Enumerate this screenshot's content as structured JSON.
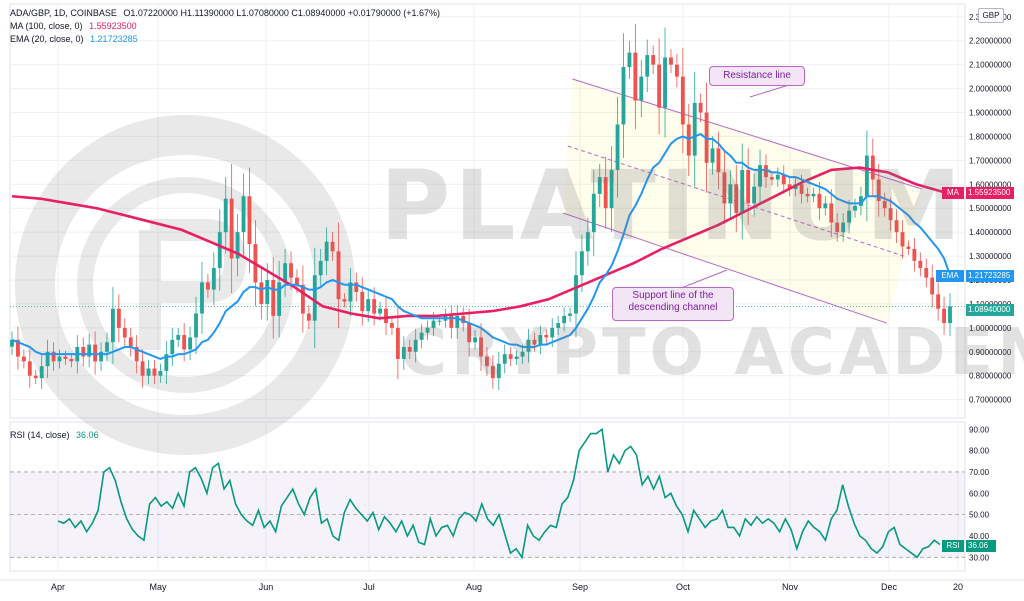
{
  "header": {
    "symbol": "ADA/GBP, 1D, COINBASE",
    "ohlc": "O1.07220000  H1.11390000  L1.07080000  C1.08940000  +0.01790000 (+1.67%)",
    "ma_label": "MA (100, close, 0)",
    "ma_value": "1.55923500",
    "ema_label": "EMA (20, close, 0)",
    "ema_value": "1.21723285",
    "currency": "GBP"
  },
  "rsi_header": {
    "label": "RSI (14, close)",
    "value": "36.06"
  },
  "annotations": {
    "resistance": "Resistance line",
    "support_line1": "Support line of the",
    "support_line2": "descending channel"
  },
  "watermark": {
    "line1": "PLATINUM",
    "line2": "CRYPTO ACADEMY"
  },
  "tags": {
    "ma": {
      "name": "MA",
      "value": "1.55923500"
    },
    "ema": {
      "name": "EMA",
      "value": "1.21723285"
    },
    "price": "1.08940000",
    "rsi": {
      "name": "RSI",
      "value": "36.06"
    }
  },
  "colors": {
    "up": "#26a69a",
    "down": "#ef5350",
    "ma": "#e91e63",
    "ema": "#2196f3",
    "rsi": "#089981",
    "channel": "#ba68c8",
    "grid": "#eef0f3"
  },
  "chart_data": [
    {
      "type": "candlestick",
      "title": "ADA/GBP, 1D, COINBASE",
      "y_ticks": [
        "2.30000000",
        "2.20000000",
        "2.10000000",
        "2.00000000",
        "1.90000000",
        "1.80000000",
        "1.70000000",
        "1.60000000",
        "1.50000000",
        "1.40000000",
        "1.30000000",
        "1.20000000",
        "1.10000000",
        "1.00000000",
        "0.90000000",
        "0.80000000",
        "0.70000000"
      ],
      "ylim": [
        0.64,
        2.32
      ],
      "x_ticks": [
        "Apr",
        "May",
        "Jun",
        "Jul",
        "Aug",
        "Sep",
        "Oct",
        "Nov",
        "Dec",
        "20"
      ],
      "close": [
        0.95,
        0.88,
        0.86,
        0.8,
        0.79,
        0.84,
        0.9,
        0.86,
        0.88,
        0.87,
        0.86,
        0.92,
        0.88,
        0.93,
        0.86,
        0.9,
        0.94,
        1.08,
        1.0,
        0.96,
        0.92,
        0.86,
        0.8,
        0.83,
        0.8,
        0.82,
        0.89,
        0.95,
        0.97,
        0.91,
        0.96,
        1.06,
        1.19,
        1.16,
        1.25,
        1.4,
        1.54,
        1.29,
        1.4,
        1.55,
        1.35,
        1.19,
        1.1,
        1.2,
        1.05,
        1.19,
        1.27,
        1.21,
        1.18,
        1.06,
        1.03,
        1.22,
        1.28,
        1.36,
        1.32,
        1.12,
        1.11,
        1.19,
        1.15,
        1.07,
        1.12,
        1.06,
        1.08,
        1.02,
        1.0,
        0.87,
        0.92,
        0.9,
        0.95,
        0.98,
        1.0,
        1.03,
        1.03,
        1.05,
        1.0,
        1.05,
        1.02,
        0.94,
        0.96,
        0.88,
        0.84,
        0.79,
        0.85,
        0.89,
        0.87,
        0.88,
        0.9,
        0.95,
        0.93,
        0.97,
        0.96,
        1.0,
        1.02,
        1.05,
        1.06,
        1.22,
        1.32,
        1.4,
        1.56,
        1.63,
        1.5,
        1.66,
        1.85,
        2.09,
        2.15,
        1.95,
        2.05,
        2.14,
        2.1,
        1.92,
        2.13,
        2.1,
        2.05,
        1.85,
        1.72,
        1.94,
        1.9,
        1.69,
        1.75,
        1.65,
        1.52,
        1.6,
        1.48,
        1.66,
        1.52,
        1.59,
        1.68,
        1.63,
        1.62,
        1.64,
        1.6,
        1.58,
        1.6,
        1.56,
        1.55,
        1.56,
        1.5,
        1.52,
        1.44,
        1.4,
        1.44,
        1.49,
        1.51,
        1.55,
        1.72,
        1.62,
        1.53,
        1.5,
        1.45,
        1.4,
        1.34,
        1.33,
        1.28,
        1.25,
        1.21,
        1.14,
        1.08,
        1.02,
        1.09
      ],
      "ma": [
        [
          0,
          1.55
        ],
        [
          10,
          1.54
        ],
        [
          20,
          1.52
        ],
        [
          30,
          1.5
        ],
        [
          40,
          1.47
        ],
        [
          50,
          1.44
        ],
        [
          60,
          1.41
        ],
        [
          70,
          1.36
        ],
        [
          80,
          1.31
        ],
        [
          90,
          1.24
        ],
        [
          100,
          1.17
        ],
        [
          110,
          1.09
        ],
        [
          120,
          1.06
        ],
        [
          130,
          1.04
        ],
        [
          140,
          1.05
        ],
        [
          150,
          1.05
        ],
        [
          160,
          1.06
        ],
        [
          170,
          1.07
        ],
        [
          180,
          1.09
        ],
        [
          190,
          1.12
        ],
        [
          200,
          1.17
        ],
        [
          210,
          1.22
        ],
        [
          220,
          1.27
        ],
        [
          230,
          1.33
        ],
        [
          240,
          1.38
        ],
        [
          250,
          1.43
        ],
        [
          260,
          1.49
        ],
        [
          270,
          1.55
        ],
        [
          280,
          1.61
        ],
        [
          290,
          1.66
        ],
        [
          300,
          1.67
        ],
        [
          310,
          1.65
        ],
        [
          320,
          1.6
        ],
        [
          332,
          1.56
        ]
      ],
      "ema": [
        0.95,
        0.94,
        0.93,
        0.92,
        0.9,
        0.89,
        0.89,
        0.89,
        0.89,
        0.89,
        0.89,
        0.89,
        0.89,
        0.89,
        0.89,
        0.89,
        0.89,
        0.9,
        0.91,
        0.92,
        0.92,
        0.91,
        0.9,
        0.89,
        0.88,
        0.87,
        0.88,
        0.88,
        0.89,
        0.89,
        0.9,
        0.91,
        0.94,
        0.95,
        0.98,
        1.02,
        1.07,
        1.09,
        1.11,
        1.15,
        1.17,
        1.17,
        1.16,
        1.17,
        1.16,
        1.16,
        1.18,
        1.18,
        1.18,
        1.17,
        1.16,
        1.16,
        1.17,
        1.19,
        1.2,
        1.19,
        1.18,
        1.18,
        1.18,
        1.17,
        1.16,
        1.15,
        1.14,
        1.13,
        1.12,
        1.09,
        1.07,
        1.06,
        1.05,
        1.04,
        1.04,
        1.04,
        1.04,
        1.04,
        1.04,
        1.04,
        1.03,
        1.02,
        1.01,
        1.0,
        0.98,
        0.96,
        0.95,
        0.94,
        0.93,
        0.93,
        0.92,
        0.92,
        0.92,
        0.93,
        0.93,
        0.94,
        0.95,
        0.96,
        0.97,
        1.0,
        1.04,
        1.08,
        1.13,
        1.19,
        1.22,
        1.26,
        1.32,
        1.39,
        1.47,
        1.51,
        1.56,
        1.62,
        1.67,
        1.69,
        1.73,
        1.77,
        1.79,
        1.8,
        1.79,
        1.8,
        1.81,
        1.79,
        1.79,
        1.77,
        1.74,
        1.72,
        1.69,
        1.69,
        1.67,
        1.66,
        1.66,
        1.66,
        1.65,
        1.65,
        1.64,
        1.63,
        1.63,
        1.62,
        1.61,
        1.6,
        1.59,
        1.58,
        1.56,
        1.54,
        1.53,
        1.52,
        1.52,
        1.52,
        1.55,
        1.55,
        1.55,
        1.54,
        1.53,
        1.51,
        1.49,
        1.47,
        1.44,
        1.42,
        1.39,
        1.36,
        1.33,
        1.29,
        1.22
      ],
      "resistance_line": [
        [
          0.589,
          2.04
        ],
        [
          0.955,
          1.58
        ]
      ],
      "support_line": [
        [
          0.579,
          1.48
        ],
        [
          0.918,
          1.02
        ]
      ],
      "midline": [
        [
          0.584,
          1.76
        ],
        [
          0.936,
          1.3
        ]
      ],
      "last_price": 1.0894,
      "ma_value": 1.559235,
      "ema_value": 1.21723285
    },
    {
      "type": "line",
      "title": "RSI (14, close)",
      "y_ticks": [
        "90.00",
        "80.00",
        "70.00",
        "60.00",
        "50.00",
        "40.00",
        "30.00"
      ],
      "ylim": [
        25,
        92
      ],
      "bands": [
        30,
        50,
        70
      ],
      "values": [
        47,
        46,
        48,
        44,
        47,
        42,
        46,
        52,
        70,
        72,
        66,
        56,
        48,
        43,
        40,
        38,
        55,
        58,
        54,
        56,
        53,
        60,
        54,
        70,
        72,
        67,
        60,
        72,
        74,
        62,
        66,
        55,
        50,
        47,
        45,
        52,
        44,
        47,
        42,
        54,
        58,
        62,
        55,
        50,
        58,
        62,
        46,
        48,
        40,
        38,
        51,
        57,
        53,
        50,
        47,
        51,
        43,
        49,
        46,
        42,
        47,
        40,
        45,
        37,
        36,
        48,
        40,
        44,
        45,
        40,
        48,
        51,
        50,
        47,
        55,
        48,
        45,
        50,
        41,
        32,
        34,
        30,
        45,
        40,
        38,
        42,
        45,
        44,
        55,
        58,
        66,
        80,
        84,
        88,
        88,
        90,
        70,
        78,
        74,
        80,
        82,
        78,
        64,
        68,
        62,
        68,
        58,
        60,
        54,
        50,
        42,
        52,
        48,
        44,
        47,
        48,
        52,
        44,
        44,
        40,
        48,
        45,
        49,
        46,
        48,
        46,
        42,
        48,
        43,
        34,
        42,
        47,
        44,
        42,
        38,
        48,
        52,
        64,
        54,
        46,
        40,
        38,
        34,
        32,
        35,
        42,
        44,
        36,
        34,
        32,
        30,
        34,
        35,
        38,
        36
      ],
      "last_value": 36.06
    }
  ]
}
